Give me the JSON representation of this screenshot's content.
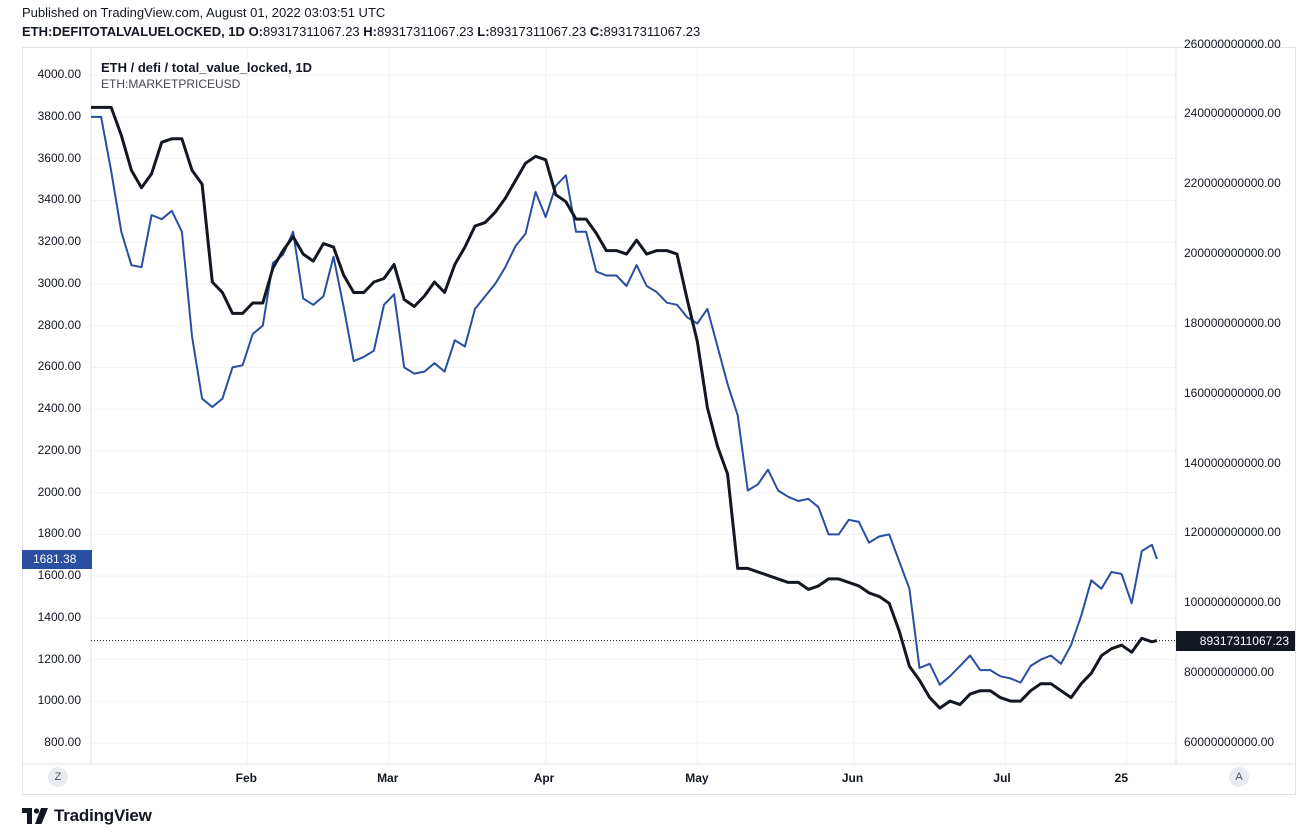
{
  "header": {
    "published": "Published on TradingView.com, August 01, 2022 03:03:51 UTC",
    "symbol": "ETH:DEFITOTALVALUELOCKED, 1D",
    "o_label": "O:",
    "o_value": "89317311067.23",
    "h_label": "H:",
    "h_value": "89317311067.23",
    "l_label": "L:",
    "l_value": "89317311067.23",
    "c_label": "C:",
    "c_value": "89317311067.23"
  },
  "legend": {
    "line1": "ETH / defi / total_value_locked, 1D",
    "line2": "ETH:MARKETPRICEUSD"
  },
  "price_tags": {
    "left": "1681.38",
    "right": "89317311067.23"
  },
  "buttons": {
    "left_scale": "Z",
    "right_scale": "A"
  },
  "brand": {
    "name": "TradingView"
  },
  "colors": {
    "tvl": "#131722",
    "price": "#2a4fa0",
    "grid": "#f0f3fa"
  },
  "chart_data": {
    "type": "line",
    "x_tick_labels": [
      "Feb",
      "Mar",
      "Apr",
      "May",
      "Jun",
      "Jul",
      "25"
    ],
    "left_axis": {
      "ticks": [
        "4000.00",
        "3800.00",
        "3600.00",
        "3400.00",
        "3200.00",
        "3000.00",
        "2800.00",
        "2600.00",
        "2400.00",
        "2200.00",
        "2000.00",
        "1800.00",
        "1600.00",
        "1400.00",
        "1200.00",
        "1000.00",
        "800.00"
      ],
      "range": [
        700,
        4130
      ]
    },
    "right_axis": {
      "ticks": [
        "260000000000.00",
        "240000000000.00",
        "220000000000.00",
        "200000000000.00",
        "180000000000.00",
        "160000000000.00",
        "140000000000.00",
        "120000000000.00",
        "100000000000.00",
        "80000000000.00",
        "60000000000.00"
      ],
      "range": [
        54000000000,
        259000000000
      ]
    },
    "last_values": {
      "price": 1681.38,
      "tvl": 89317311067.23
    },
    "series": [
      {
        "key": "price",
        "axis": "left",
        "x": [
          "2022-01-01",
          "2022-01-03",
          "2022-01-05",
          "2022-01-07",
          "2022-01-09",
          "2022-01-11",
          "2022-01-13",
          "2022-01-15",
          "2022-01-17",
          "2022-01-19",
          "2022-01-21",
          "2022-01-23",
          "2022-01-25",
          "2022-01-27",
          "2022-01-29",
          "2022-01-31",
          "2022-02-02",
          "2022-02-04",
          "2022-02-06",
          "2022-02-08",
          "2022-02-10",
          "2022-02-12",
          "2022-02-14",
          "2022-02-16",
          "2022-02-18",
          "2022-02-20",
          "2022-02-22",
          "2022-02-24",
          "2022-02-26",
          "2022-02-28",
          "2022-03-02",
          "2022-03-04",
          "2022-03-06",
          "2022-03-08",
          "2022-03-10",
          "2022-03-12",
          "2022-03-14",
          "2022-03-16",
          "2022-03-18",
          "2022-03-20",
          "2022-03-22",
          "2022-03-24",
          "2022-03-26",
          "2022-03-28",
          "2022-03-30",
          "2022-04-01",
          "2022-04-03",
          "2022-04-05",
          "2022-04-07",
          "2022-04-09",
          "2022-04-11",
          "2022-04-13",
          "2022-04-15",
          "2022-04-17",
          "2022-04-19",
          "2022-04-21",
          "2022-04-23",
          "2022-04-25",
          "2022-04-27",
          "2022-04-29",
          "2022-05-01",
          "2022-05-03",
          "2022-05-05",
          "2022-05-07",
          "2022-05-09",
          "2022-05-11",
          "2022-05-13",
          "2022-05-15",
          "2022-05-17",
          "2022-05-19",
          "2022-05-21",
          "2022-05-23",
          "2022-05-25",
          "2022-05-27",
          "2022-05-29",
          "2022-05-31",
          "2022-06-02",
          "2022-06-04",
          "2022-06-06",
          "2022-06-08",
          "2022-06-10",
          "2022-06-12",
          "2022-06-14",
          "2022-06-16",
          "2022-06-18",
          "2022-06-20",
          "2022-06-22",
          "2022-06-24",
          "2022-06-26",
          "2022-06-28",
          "2022-06-30",
          "2022-07-02",
          "2022-07-04",
          "2022-07-06",
          "2022-07-08",
          "2022-07-10",
          "2022-07-12",
          "2022-07-14",
          "2022-07-16",
          "2022-07-18",
          "2022-07-20",
          "2022-07-22",
          "2022-07-24",
          "2022-07-26",
          "2022-07-28",
          "2022-07-30",
          "2022-07-31"
        ],
        "values": [
          3800,
          3800,
          3540,
          3250,
          3090,
          3080,
          3330,
          3310,
          3350,
          3250,
          2750,
          2450,
          2410,
          2450,
          2600,
          2610,
          2760,
          2800,
          3100,
          3140,
          3250,
          2930,
          2900,
          2940,
          3130,
          2890,
          2630,
          2650,
          2680,
          2900,
          2950,
          2600,
          2570,
          2580,
          2620,
          2580,
          2730,
          2700,
          2880,
          2940,
          3000,
          3080,
          3180,
          3240,
          3440,
          3320,
          3470,
          3520,
          3250,
          3250,
          3060,
          3040,
          3040,
          2990,
          3090,
          2990,
          2960,
          2910,
          2900,
          2840,
          2810,
          2880,
          2700,
          2520,
          2370,
          2010,
          2040,
          2110,
          2010,
          1980,
          1960,
          1970,
          1930,
          1800,
          1800,
          1870,
          1860,
          1760,
          1790,
          1800,
          1670,
          1540,
          1160,
          1180,
          1080,
          1120,
          1170,
          1220,
          1150,
          1150,
          1120,
          1110,
          1090,
          1170,
          1200,
          1220,
          1180,
          1270,
          1410,
          1580,
          1540,
          1620,
          1610,
          1470,
          1720,
          1750,
          1681.38
        ]
      },
      {
        "key": "tvl",
        "axis": "right",
        "x": [
          "2022-01-01",
          "2022-01-03",
          "2022-01-05",
          "2022-01-07",
          "2022-01-09",
          "2022-01-11",
          "2022-01-13",
          "2022-01-15",
          "2022-01-17",
          "2022-01-19",
          "2022-01-21",
          "2022-01-23",
          "2022-01-25",
          "2022-01-27",
          "2022-01-29",
          "2022-01-31",
          "2022-02-02",
          "2022-02-04",
          "2022-02-06",
          "2022-02-08",
          "2022-02-10",
          "2022-02-12",
          "2022-02-14",
          "2022-02-16",
          "2022-02-18",
          "2022-02-20",
          "2022-02-22",
          "2022-02-24",
          "2022-02-26",
          "2022-02-28",
          "2022-03-02",
          "2022-03-04",
          "2022-03-06",
          "2022-03-08",
          "2022-03-10",
          "2022-03-12",
          "2022-03-14",
          "2022-03-16",
          "2022-03-18",
          "2022-03-20",
          "2022-03-22",
          "2022-03-24",
          "2022-03-26",
          "2022-03-28",
          "2022-03-30",
          "2022-04-01",
          "2022-04-03",
          "2022-04-05",
          "2022-04-07",
          "2022-04-09",
          "2022-04-11",
          "2022-04-13",
          "2022-04-15",
          "2022-04-17",
          "2022-04-19",
          "2022-04-21",
          "2022-04-23",
          "2022-04-25",
          "2022-04-27",
          "2022-04-29",
          "2022-05-01",
          "2022-05-03",
          "2022-05-05",
          "2022-05-07",
          "2022-05-09",
          "2022-05-11",
          "2022-05-13",
          "2022-05-15",
          "2022-05-17",
          "2022-05-19",
          "2022-05-21",
          "2022-05-23",
          "2022-05-25",
          "2022-05-27",
          "2022-05-29",
          "2022-05-31",
          "2022-06-02",
          "2022-06-04",
          "2022-06-06",
          "2022-06-08",
          "2022-06-10",
          "2022-06-12",
          "2022-06-14",
          "2022-06-16",
          "2022-06-18",
          "2022-06-20",
          "2022-06-22",
          "2022-06-24",
          "2022-06-26",
          "2022-06-28",
          "2022-06-30",
          "2022-07-02",
          "2022-07-04",
          "2022-07-06",
          "2022-07-08",
          "2022-07-10",
          "2022-07-12",
          "2022-07-14",
          "2022-07-16",
          "2022-07-18",
          "2022-07-20",
          "2022-07-22",
          "2022-07-24",
          "2022-07-26",
          "2022-07-28",
          "2022-07-30",
          "2022-07-31"
        ],
        "values": [
          242000000000,
          242000000000,
          242000000000,
          234000000000,
          224000000000,
          219000000000,
          223000000000,
          232000000000,
          233000000000,
          233000000000,
          224000000000,
          220000000000,
          192000000000,
          189000000000,
          183000000000,
          183000000000,
          186000000000,
          186000000000,
          196000000000,
          201000000000,
          205000000000,
          200000000000,
          198000000000,
          203000000000,
          202000000000,
          194000000000,
          189000000000,
          189000000000,
          192000000000,
          193000000000,
          197000000000,
          187000000000,
          185000000000,
          188000000000,
          192000000000,
          189000000000,
          197000000000,
          202000000000,
          208000000000,
          209000000000,
          212000000000,
          216000000000,
          221000000000,
          226000000000,
          228000000000,
          227000000000,
          217000000000,
          215000000000,
          210000000000,
          210000000000,
          206000000000,
          201000000000,
          201000000000,
          200000000000,
          204000000000,
          200000000000,
          201000000000,
          201000000000,
          200000000000,
          187000000000,
          175000000000,
          156000000000,
          145000000000,
          137000000000,
          110000000000,
          110000000000,
          109000000000,
          108000000000,
          107000000000,
          106000000000,
          106000000000,
          104000000000,
          105000000000,
          107000000000,
          107000000000,
          106000000000,
          105000000000,
          103000000000,
          102000000000,
          100000000000,
          92000000000,
          82000000000,
          78000000000,
          73000000000,
          70000000000,
          72000000000,
          71000000000,
          74000000000,
          75000000000,
          75000000000,
          73000000000,
          72000000000,
          72000000000,
          75000000000,
          77000000000,
          77000000000,
          75000000000,
          73000000000,
          77000000000,
          80000000000,
          85000000000,
          87000000000,
          88000000000,
          86000000000,
          90000000000,
          89000000000,
          89317311067.23
        ]
      }
    ]
  }
}
